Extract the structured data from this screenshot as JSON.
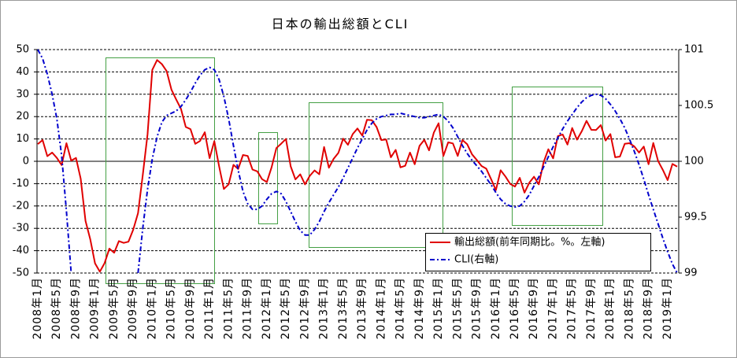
{
  "chart_data": {
    "type": "line",
    "title": "日本の輸出総額とCLI",
    "grid": true,
    "legend_position": "bottom-right",
    "highlight_color": "#44a044",
    "x_tick_labels": [
      "2008年1月",
      "2008年5月",
      "2008年9月",
      "2009年1月",
      "2009年5月",
      "2009年9月",
      "2010年1月",
      "2010年5月",
      "2010年9月",
      "2011年1月",
      "2011年5月",
      "2011年9月",
      "2012年1月",
      "2012年5月",
      "2012年9月",
      "2013年1月",
      "2013年5月",
      "2013年9月",
      "2014年1月",
      "2014年5月",
      "2014年9月",
      "2015年1月",
      "2015年5月",
      "2015年9月",
      "2016年1月",
      "2016年5月",
      "2016年9月",
      "2017年1月",
      "2017年5月",
      "2017年9月",
      "2018年1月",
      "2018年5月",
      "2018年9月",
      "2019年1月"
    ],
    "y_left": {
      "ylim": [
        -50,
        50
      ],
      "ticks": [
        50,
        40,
        30,
        20,
        10,
        0,
        -10,
        -20,
        -30,
        -40,
        -50
      ]
    },
    "y_right": {
      "ylim": [
        99,
        101
      ],
      "ticks": [
        101,
        100.5,
        100,
        99.5,
        99
      ]
    },
    "series": [
      {
        "name": "輸出総額(前年同期比。%。左軸)",
        "y_axis": "left",
        "color": "#e00000",
        "values": [
          7.7,
          9.5,
          2.3,
          3.9,
          1.5,
          -1.7,
          8.1,
          0.3,
          1.5,
          -7.8,
          -26.7,
          -35,
          -45.7,
          -49.4,
          -45.6,
          -39.1,
          -40.9,
          -35.7,
          -36.5,
          -36,
          -30.6,
          -23.2,
          -6.2,
          12.1,
          40.9,
          45.3,
          43.5,
          40.4,
          32.1,
          27.7,
          23.5,
          15.4,
          14.4,
          7.8,
          9.1,
          13,
          1.4,
          9,
          -2.3,
          -12.4,
          -10.3,
          -1.6,
          -3.4,
          2.8,
          2.4,
          -3.7,
          -4.5,
          -8,
          -9.3,
          -2.7,
          5.9,
          7.9,
          10,
          -2.3,
          -8.1,
          -5.8,
          -10.3,
          -6.5,
          -4.1,
          -5.8,
          6.4,
          -2.9,
          1.1,
          3.8,
          10.1,
          7.4,
          12.2,
          14.7,
          11.5,
          18.6,
          18.4,
          15.3,
          9.5,
          9.8,
          1.8,
          5.1,
          -2.7,
          -2,
          3.9,
          -1.3,
          6.9,
          9.6,
          4.9,
          12.9,
          17,
          2.4,
          8.5,
          8,
          2.4,
          9.5,
          7.6,
          3.1,
          0.6,
          -2.1,
          -3.3,
          -8,
          -12.9,
          -4,
          -6.8,
          -10.1,
          -11.3,
          -7.4,
          -14,
          -9.6,
          -6.9,
          -10.3,
          -0.4,
          5.4,
          1.3,
          11.3,
          12,
          7.5,
          14.9,
          9.7,
          13.4,
          18.1,
          14.1,
          14,
          16.2,
          9.3,
          12.2,
          1.8,
          2.1,
          7.8,
          8.1,
          6.7,
          3.9,
          6.6,
          -1.3,
          8.2,
          0.1,
          -3.9,
          -8.4,
          -1.2,
          -2.4
        ]
      },
      {
        "name": "CLI(右軸)",
        "y_axis": "right",
        "color": "#0000cc",
        "values": [
          101,
          100.92,
          100.78,
          100.6,
          100.38,
          100.05,
          99.55,
          99,
          null,
          null,
          null,
          null,
          null,
          null,
          null,
          null,
          null,
          null,
          null,
          null,
          null,
          99,
          99.4,
          99.75,
          100.02,
          100.22,
          100.35,
          100.41,
          100.43,
          100.45,
          100.49,
          100.55,
          100.62,
          100.7,
          100.77,
          100.82,
          100.84,
          100.82,
          100.73,
          100.58,
          100.38,
          100.14,
          99.92,
          99.73,
          99.62,
          99.57,
          99.57,
          99.6,
          99.66,
          99.71,
          99.73,
          99.71,
          99.64,
          99.55,
          99.46,
          99.38,
          99.34,
          99.34,
          99.39,
          99.46,
          99.55,
          99.63,
          99.7,
          99.77,
          99.85,
          99.94,
          100.03,
          100.12,
          100.2,
          100.28,
          100.34,
          100.38,
          100.4,
          100.41,
          100.42,
          100.42,
          100.43,
          100.42,
          100.41,
          100.4,
          100.39,
          100.39,
          100.4,
          100.41,
          100.42,
          100.4,
          100.36,
          100.3,
          100.22,
          100.14,
          100.07,
          100.01,
          99.96,
          99.91,
          99.85,
          99.79,
          99.72,
          99.66,
          99.62,
          99.6,
          99.59,
          99.6,
          99.64,
          99.7,
          99.78,
          99.86,
          99.95,
          100.04,
          100.13,
          100.21,
          100.29,
          100.36,
          100.42,
          100.48,
          100.53,
          100.57,
          100.59,
          100.6,
          100.59,
          100.56,
          100.51,
          100.45,
          100.38,
          100.3,
          100.2,
          100.09,
          99.97,
          99.84,
          99.7,
          99.57,
          99.44,
          99.31,
          99.19,
          99.08,
          99
        ]
      }
    ]
  }
}
